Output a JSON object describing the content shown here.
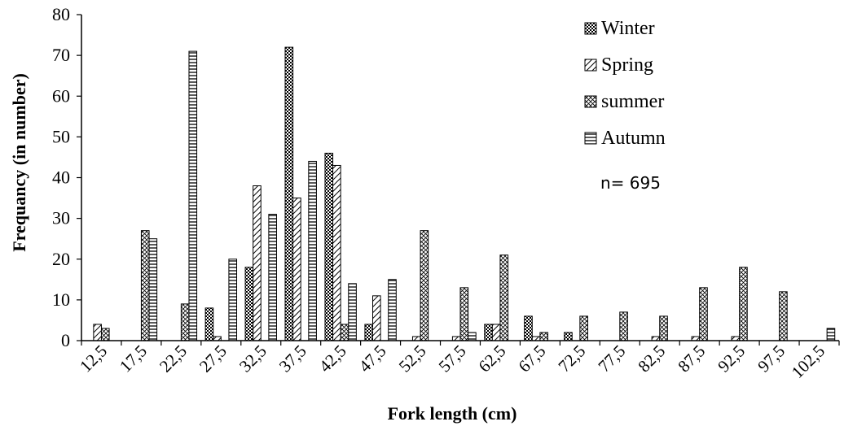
{
  "chart_data": {
    "type": "bar",
    "title": "",
    "xlabel": "Fork length (cm)",
    "ylabel": "Frequancy (in number)",
    "ylim": [
      0,
      80
    ],
    "yticks": [
      "0",
      "10",
      "20",
      "30",
      "40",
      "50",
      "60",
      "70",
      "80"
    ],
    "categories": [
      "12,5",
      "17,5",
      "22,5",
      "27,5",
      "32,5",
      "37,5",
      "42,5",
      "47,5",
      "52,5",
      "57,5",
      "62,5",
      "67,5",
      "72,5",
      "77,5",
      "82,5",
      "87,5",
      "92,5",
      "97,5",
      "102,5"
    ],
    "series": [
      {
        "name": "Winter",
        "pattern": "dots",
        "values": [
          0,
          0,
          0,
          8,
          18,
          72,
          46,
          4,
          0,
          0,
          4,
          6,
          2,
          0,
          0,
          0,
          0,
          0,
          0
        ]
      },
      {
        "name": "Spring",
        "pattern": "diagonal",
        "values": [
          4,
          0,
          0,
          1,
          38,
          35,
          43,
          11,
          1,
          1,
          4,
          1,
          0,
          0,
          1,
          1,
          1,
          0,
          0
        ]
      },
      {
        "name": "summer",
        "pattern": "crosshatch",
        "values": [
          3,
          27,
          9,
          0,
          0,
          0,
          4,
          0,
          27,
          13,
          21,
          2,
          6,
          7,
          6,
          13,
          18,
          12,
          0
        ]
      },
      {
        "name": "Autumn",
        "pattern": "horizontal",
        "values": [
          0,
          25,
          71,
          20,
          31,
          44,
          14,
          15,
          0,
          2,
          0,
          0,
          0,
          0,
          0,
          0,
          0,
          0,
          3
        ]
      }
    ],
    "annotation": "n= 695",
    "grid": false,
    "legend_position": "top-right"
  }
}
